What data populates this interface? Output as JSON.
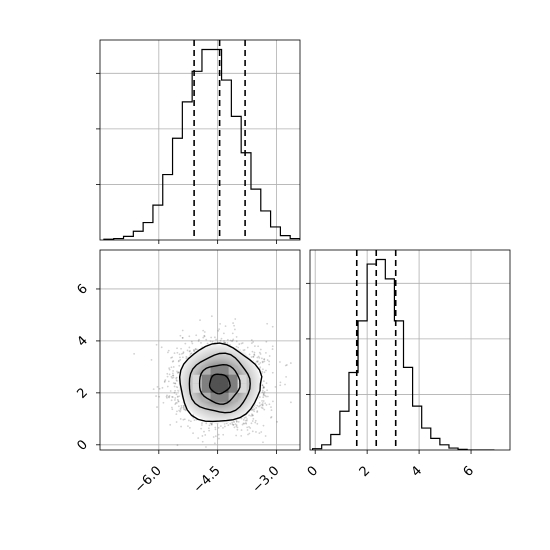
{
  "chart_data": {
    "type": "corner",
    "parameters": [
      {
        "name": "",
        "range": [
          -7.5,
          -2.4
        ],
        "ticks": [
          -6.0,
          -4.5,
          -3.0
        ],
        "tick_labels": [
          "−6.0",
          "−4.5",
          "−3.0"
        ],
        "quantiles": [
          -5.1,
          -4.45,
          -3.8
        ],
        "histogram": {
          "bin_width": 0.25,
          "bin_start": -7.4,
          "counts": [
            1,
            2,
            5,
            12,
            24,
            48,
            90,
            140,
            190,
            232,
            262,
            262,
            220,
            170,
            120,
            70,
            40,
            18,
            6,
            2
          ]
        }
      },
      {
        "name": "",
        "range": [
          -0.2,
          7.5
        ],
        "ticks": [
          0,
          2,
          4,
          6
        ],
        "tick_labels": [
          "0",
          "2",
          "4",
          "6"
        ],
        "quantiles": [
          1.6,
          2.35,
          3.1
        ],
        "histogram": {
          "bin_width": 0.35,
          "bin_start": -0.1,
          "counts": [
            2,
            8,
            24,
            60,
            120,
            200,
            288,
            295,
            265,
            200,
            128,
            68,
            34,
            18,
            8,
            3,
            1,
            0,
            0,
            0
          ]
        }
      }
    ],
    "joint": {
      "x_param": 0,
      "y_param": 1,
      "center": [
        -4.45,
        2.35
      ],
      "sigma": [
        0.52,
        0.75
      ],
      "contour_levels_sigma": [
        0.5,
        1.0,
        1.5,
        2.0
      ],
      "scatter_points": 2500
    },
    "grid": true
  }
}
